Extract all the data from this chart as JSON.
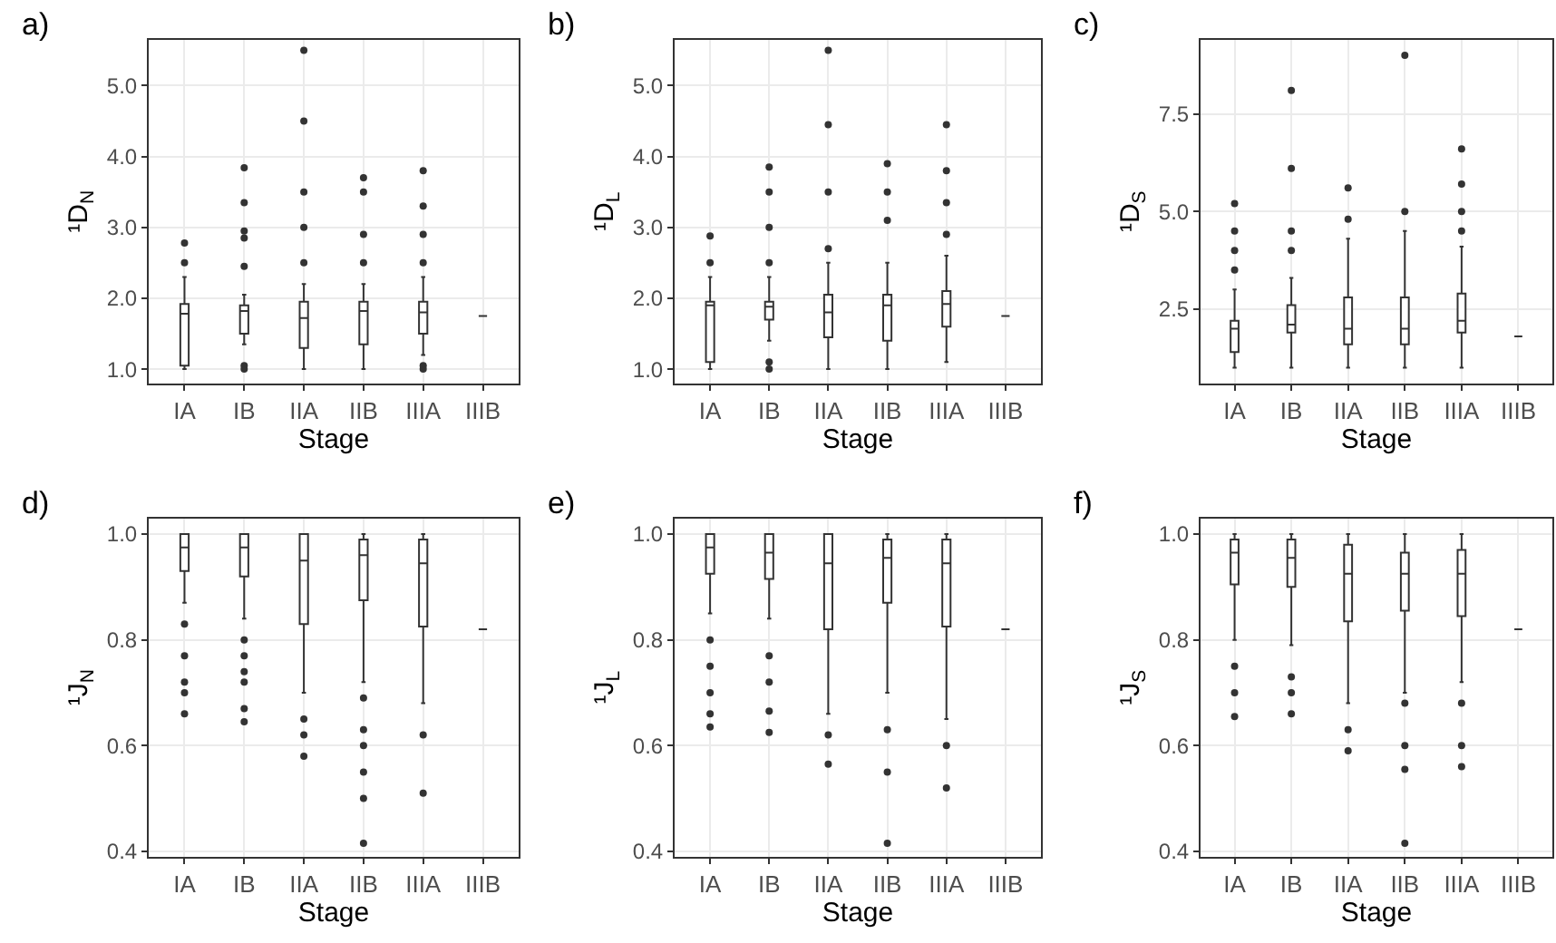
{
  "chart_data": [
    {
      "type": "box",
      "title": "a)",
      "xlabel": "Stage",
      "ylabel": "¹D$_{N}$",
      "categories": [
        "IA",
        "IB",
        "IIA",
        "IIB",
        "IIIA",
        "IIIB"
      ],
      "ylim": [
        0.8,
        5.65
      ],
      "yticks": [
        {
          "value": 1,
          "label": "1.0"
        },
        {
          "value": 2,
          "label": "2.0"
        },
        {
          "value": 3,
          "label": "3.0"
        },
        {
          "value": 4,
          "label": "4.0"
        },
        {
          "value": 5,
          "label": "5.0"
        }
      ],
      "grid": true,
      "color": "#333333",
      "boxes": [
        {
          "low": 1.0,
          "q1": 1.05,
          "median": 1.78,
          "q3": 1.92,
          "high": 2.3,
          "outliers": [
            2.5,
            2.78
          ]
        },
        {
          "low": 1.35,
          "q1": 1.5,
          "median": 1.82,
          "q3": 1.9,
          "high": 2.05,
          "outliers": [
            1.0,
            1.05,
            2.45,
            2.85,
            2.95,
            3.35,
            3.84
          ]
        },
        {
          "low": 1.0,
          "q1": 1.3,
          "median": 1.72,
          "q3": 1.95,
          "high": 2.2,
          "outliers": [
            2.5,
            3.0,
            3.5,
            4.5,
            5.5
          ]
        },
        {
          "low": 1.0,
          "q1": 1.35,
          "median": 1.82,
          "q3": 1.95,
          "high": 2.2,
          "outliers": [
            2.5,
            2.9,
            3.5,
            3.7
          ]
        },
        {
          "low": 1.2,
          "q1": 1.5,
          "median": 1.8,
          "q3": 1.95,
          "high": 2.3,
          "outliers": [
            1.0,
            1.05,
            2.5,
            2.9,
            3.3,
            3.8
          ]
        },
        {
          "low": 1.75,
          "q1": 1.75,
          "median": 1.75,
          "q3": 1.75,
          "high": 1.75
        }
      ]
    },
    {
      "type": "box",
      "title": "b)",
      "xlabel": "Stage",
      "ylabel": "¹D$_{L}$",
      "categories": [
        "IA",
        "IB",
        "IIA",
        "IIB",
        "IIIA",
        "IIIB"
      ],
      "ylim": [
        0.8,
        5.65
      ],
      "yticks": [
        {
          "value": 1,
          "label": "1.0"
        },
        {
          "value": 2,
          "label": "2.0"
        },
        {
          "value": 3,
          "label": "3.0"
        },
        {
          "value": 4,
          "label": "4.0"
        },
        {
          "value": 5,
          "label": "5.0"
        }
      ],
      "grid": true,
      "color": "#333333",
      "boxes": [
        {
          "low": 1.0,
          "q1": 1.1,
          "median": 1.9,
          "q3": 1.95,
          "high": 2.3,
          "outliers": [
            2.5,
            2.88
          ]
        },
        {
          "low": 1.4,
          "q1": 1.7,
          "median": 1.88,
          "q3": 1.95,
          "high": 2.3,
          "outliers": [
            1.0,
            1.1,
            2.5,
            3.0,
            3.5,
            3.85
          ]
        },
        {
          "low": 1.0,
          "q1": 1.45,
          "median": 1.8,
          "q3": 2.05,
          "high": 2.5,
          "outliers": [
            2.7,
            3.5,
            4.45,
            5.5
          ]
        },
        {
          "low": 1.0,
          "q1": 1.4,
          "median": 1.9,
          "q3": 2.05,
          "high": 2.5,
          "outliers": [
            3.1,
            3.5,
            3.9
          ]
        },
        {
          "low": 1.1,
          "q1": 1.6,
          "median": 1.92,
          "q3": 2.1,
          "high": 2.6,
          "outliers": [
            2.9,
            3.35,
            3.8,
            4.45
          ]
        },
        {
          "low": 1.75,
          "q1": 1.75,
          "median": 1.75,
          "q3": 1.75,
          "high": 1.75
        }
      ]
    },
    {
      "type": "box",
      "title": "c)",
      "xlabel": "Stage",
      "ylabel": "¹D$_{S}$",
      "categories": [
        "IA",
        "IB",
        "IIA",
        "IIB",
        "IIIA",
        "IIIB"
      ],
      "ylim": [
        0.6,
        9.4
      ],
      "yticks": [
        2.5,
        {
          "value": 5,
          "label": "5.0"
        },
        7.5
      ],
      "grid": true,
      "color": "#333333",
      "boxes": [
        {
          "low": 1.0,
          "q1": 1.4,
          "median": 2.0,
          "q3": 2.2,
          "high": 3.0,
          "outliers": [
            3.5,
            4.0,
            4.5,
            5.2
          ]
        },
        {
          "low": 1.0,
          "q1": 1.9,
          "median": 2.1,
          "q3": 2.6,
          "high": 3.3,
          "outliers": [
            4.0,
            4.5,
            6.1,
            8.1
          ]
        },
        {
          "low": 1.0,
          "q1": 1.6,
          "median": 2.0,
          "q3": 2.8,
          "high": 4.3,
          "outliers": [
            4.8,
            5.6
          ]
        },
        {
          "low": 1.0,
          "q1": 1.6,
          "median": 2.0,
          "q3": 2.8,
          "high": 4.5,
          "outliers": [
            5.0,
            9.0
          ]
        },
        {
          "low": 1.0,
          "q1": 1.9,
          "median": 2.2,
          "q3": 2.9,
          "high": 4.1,
          "outliers": [
            4.5,
            5.0,
            5.7,
            6.6
          ]
        },
        {
          "low": 1.8,
          "q1": 1.8,
          "median": 1.8,
          "q3": 1.8,
          "high": 1.8
        }
      ]
    },
    {
      "type": "box",
      "title": "d)",
      "xlabel": "Stage",
      "ylabel": "¹J$_{N}$",
      "categories": [
        "IA",
        "IB",
        "IIA",
        "IIB",
        "IIIA",
        "IIIB"
      ],
      "ylim": [
        0.39,
        1.03
      ],
      "yticks": [
        0.4,
        0.6,
        0.8,
        {
          "value": 1,
          "label": "1.0"
        }
      ],
      "grid": true,
      "color": "#333333",
      "boxes": [
        {
          "low": 0.87,
          "q1": 0.93,
          "median": 0.975,
          "q3": 1.0,
          "high": 1.0,
          "outliers": [
            0.83,
            0.77,
            0.72,
            0.7,
            0.66
          ]
        },
        {
          "low": 0.84,
          "q1": 0.92,
          "median": 0.975,
          "q3": 1.0,
          "high": 1.0,
          "outliers": [
            0.8,
            0.77,
            0.74,
            0.72,
            0.67,
            0.645
          ]
        },
        {
          "low": 0.7,
          "q1": 0.83,
          "median": 0.95,
          "q3": 1.0,
          "high": 1.0,
          "outliers": [
            0.65,
            0.62,
            0.58
          ]
        },
        {
          "low": 0.72,
          "q1": 0.875,
          "median": 0.96,
          "q3": 0.99,
          "high": 1.0,
          "outliers": [
            0.69,
            0.63,
            0.6,
            0.55,
            0.5,
            0.415
          ]
        },
        {
          "low": 0.68,
          "q1": 0.825,
          "median": 0.945,
          "q3": 0.99,
          "high": 1.0,
          "outliers": [
            0.62,
            0.51
          ]
        },
        {
          "low": 0.82,
          "q1": 0.82,
          "median": 0.82,
          "q3": 0.82,
          "high": 0.82
        }
      ]
    },
    {
      "type": "box",
      "title": "e)",
      "xlabel": "Stage",
      "ylabel": "¹J$_{L}$",
      "categories": [
        "IA",
        "IB",
        "IIA",
        "IIB",
        "IIIA",
        "IIIB"
      ],
      "ylim": [
        0.39,
        1.03
      ],
      "yticks": [
        0.4,
        0.6,
        0.8,
        {
          "value": 1,
          "label": "1.0"
        }
      ],
      "grid": true,
      "color": "#333333",
      "boxes": [
        {
          "low": 0.85,
          "q1": 0.925,
          "median": 0.975,
          "q3": 1.0,
          "high": 1.0,
          "outliers": [
            0.8,
            0.75,
            0.7,
            0.66,
            0.635
          ]
        },
        {
          "low": 0.84,
          "q1": 0.915,
          "median": 0.965,
          "q3": 1.0,
          "high": 1.0,
          "outliers": [
            0.77,
            0.72,
            0.665,
            0.625
          ]
        },
        {
          "low": 0.66,
          "q1": 0.82,
          "median": 0.945,
          "q3": 1.0,
          "high": 1.0,
          "outliers": [
            0.62,
            0.565
          ]
        },
        {
          "low": 0.7,
          "q1": 0.87,
          "median": 0.955,
          "q3": 0.99,
          "high": 1.0,
          "outliers": [
            0.63,
            0.55,
            0.415
          ]
        },
        {
          "low": 0.65,
          "q1": 0.825,
          "median": 0.945,
          "q3": 0.99,
          "high": 1.0,
          "outliers": [
            0.6,
            0.52
          ]
        },
        {
          "low": 0.82,
          "q1": 0.82,
          "median": 0.82,
          "q3": 0.82,
          "high": 0.82
        }
      ]
    },
    {
      "type": "box",
      "title": "f)",
      "xlabel": "Stage",
      "ylabel": "¹J$_{S}$",
      "categories": [
        "IA",
        "IB",
        "IIA",
        "IIB",
        "IIIA",
        "IIIB"
      ],
      "ylim": [
        0.39,
        1.03
      ],
      "yticks": [
        0.4,
        0.6,
        0.8,
        {
          "value": 1,
          "label": "1.0"
        }
      ],
      "grid": true,
      "color": "#333333",
      "boxes": [
        {
          "low": 0.8,
          "q1": 0.905,
          "median": 0.965,
          "q3": 0.99,
          "high": 1.0,
          "outliers": [
            0.75,
            0.7,
            0.655
          ]
        },
        {
          "low": 0.79,
          "q1": 0.9,
          "median": 0.955,
          "q3": 0.99,
          "high": 1.0,
          "outliers": [
            0.73,
            0.7,
            0.66
          ]
        },
        {
          "low": 0.68,
          "q1": 0.835,
          "median": 0.925,
          "q3": 0.98,
          "high": 1.0,
          "outliers": [
            0.63,
            0.59
          ]
        },
        {
          "low": 0.7,
          "q1": 0.855,
          "median": 0.925,
          "q3": 0.965,
          "high": 1.0,
          "outliers": [
            0.68,
            0.6,
            0.555,
            0.415
          ]
        },
        {
          "low": 0.72,
          "q1": 0.845,
          "median": 0.925,
          "q3": 0.97,
          "high": 1.0,
          "outliers": [
            0.68,
            0.6,
            0.56
          ]
        },
        {
          "low": 0.82,
          "q1": 0.82,
          "median": 0.82,
          "q3": 0.82,
          "high": 0.82
        }
      ]
    }
  ]
}
